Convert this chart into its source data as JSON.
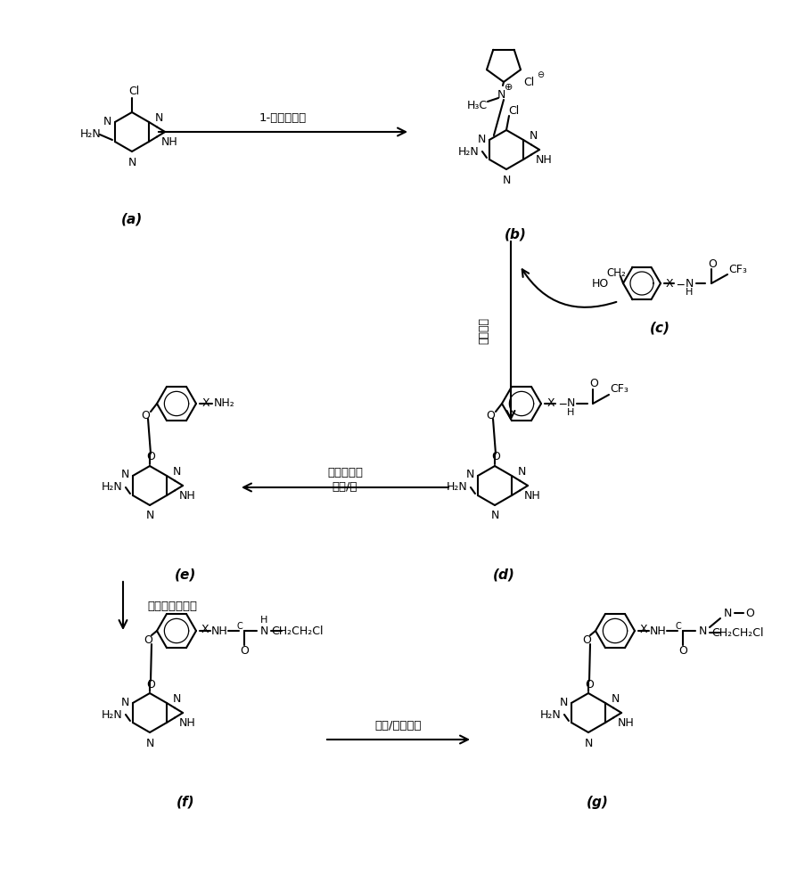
{
  "bg": "#ffffff",
  "figsize": [
    9.04,
    10.0
  ],
  "dpi": 100,
  "labels": {
    "a": "(a)",
    "b": "(b)",
    "c": "(c)",
    "d": "(d)",
    "e": "(e)",
    "f": "(f)",
    "g": "(g)"
  },
  "reagents": {
    "ab": "1-甲基吡咯烷",
    "b_down": "由替工艺",
    "de": "无水碳酸钾\n甲醇/水",
    "ef": "氯乙基异氰酸酯",
    "fg": "盐酸/亚硝酸钠"
  }
}
